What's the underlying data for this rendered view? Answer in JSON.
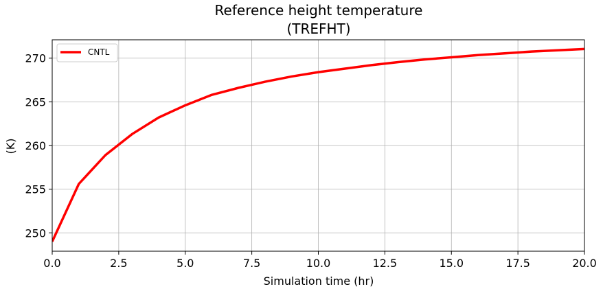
{
  "chart_data": {
    "type": "line",
    "title_line1": "Reference height temperature",
    "title_line2": "(TREFHT)",
    "xlabel": "Simulation time (hr)",
    "ylabel": "(K)",
    "xlim": [
      0,
      20
    ],
    "ylim": [
      247.9,
      272.1
    ],
    "xticks": [
      "0.0",
      "2.5",
      "5.0",
      "7.5",
      "10.0",
      "12.5",
      "15.0",
      "17.5",
      "20.0"
    ],
    "xtick_values": [
      0,
      2.5,
      5,
      7.5,
      10,
      12.5,
      15,
      17.5,
      20
    ],
    "yticks": [
      "250",
      "255",
      "260",
      "265",
      "270"
    ],
    "ytick_values": [
      250,
      255,
      260,
      265,
      270
    ],
    "grid": true,
    "legend_position": "top-left",
    "series": [
      {
        "name": "CNTL",
        "color": "#ff0000",
        "x": [
          0,
          1,
          2,
          3,
          4,
          5,
          6,
          7,
          8,
          9,
          10,
          11,
          12,
          13,
          14,
          15,
          16,
          17,
          18,
          19,
          20
        ],
        "y": [
          249.0,
          255.6,
          258.9,
          261.3,
          263.2,
          264.6,
          265.8,
          266.6,
          267.3,
          267.9,
          268.4,
          268.8,
          269.2,
          269.55,
          269.85,
          270.1,
          270.35,
          270.55,
          270.75,
          270.9,
          271.05
        ]
      }
    ]
  }
}
